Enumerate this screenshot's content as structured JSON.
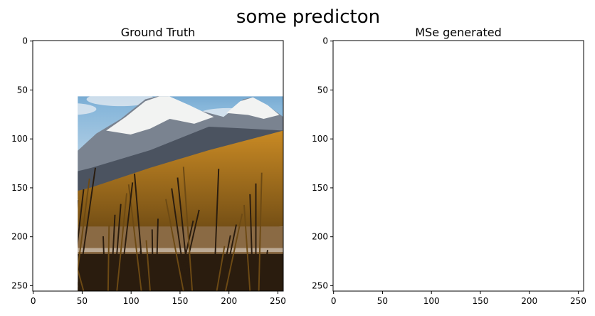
{
  "figure": {
    "suptitle": "some predicton"
  },
  "panels": [
    {
      "id": "ground-truth",
      "title": "Ground Truth",
      "x_ticks": [
        "0",
        "50",
        "100",
        "150",
        "200",
        "250"
      ],
      "y_ticks": [
        "0",
        "50",
        "100",
        "150",
        "200",
        "250"
      ],
      "x_tick_values": [
        0,
        50,
        100,
        150,
        200,
        250
      ],
      "y_tick_values": [
        0,
        50,
        100,
        150,
        200,
        250
      ],
      "image_extent": [
        0,
        256
      ],
      "palette": {
        "sky_top": "#2e6fa8",
        "sky_mid": "#86b6da",
        "sky_low": "#c9dcea",
        "cloud": "#e8eef3",
        "snow": "#f2f3f2",
        "rock": "#7a8390",
        "rock_dark": "#4b5360",
        "forest": "#c98a24",
        "forest_dark": "#6d4a14",
        "lake": "#8a6a44",
        "grass": "#2a1c0e"
      }
    },
    {
      "id": "mse-generated",
      "title": "MSe generated",
      "x_ticks": [
        "0",
        "50",
        "100",
        "150",
        "200",
        "250"
      ],
      "y_ticks": [
        "0",
        "50",
        "100",
        "150",
        "200",
        "250"
      ],
      "x_tick_values": [
        0,
        50,
        100,
        150,
        200,
        250
      ],
      "y_tick_values": [
        0,
        50,
        100,
        150,
        200,
        250
      ],
      "image_extent": [
        0,
        256
      ],
      "palette": {
        "sky_top": "#3e5470",
        "sky_mid": "#8a9bb2",
        "sky_low": "#c3cbd6",
        "cloud": "#dde2ea",
        "snow": "#eef0f2",
        "rock": "#7c8592",
        "rock_dark": "#4c5360",
        "forest": "#b98830",
        "forest_dark": "#5e4218",
        "lake": "#7e6346",
        "grass": "#1f160d"
      }
    }
  ]
}
